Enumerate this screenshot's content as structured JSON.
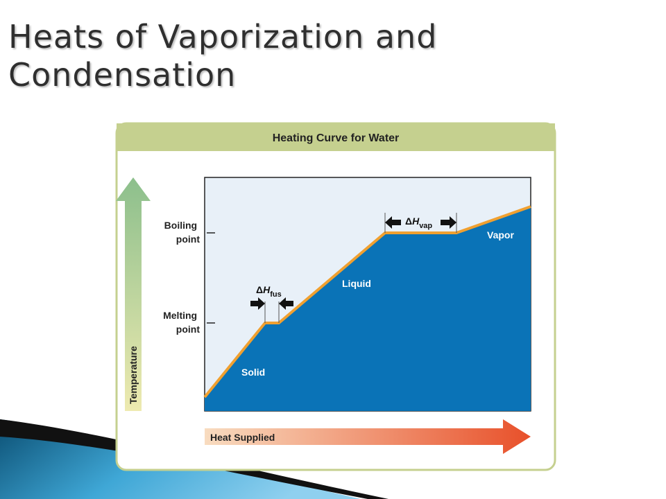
{
  "slide": {
    "title_line1": "Heats of Vaporization and",
    "title_line2": "Condensation"
  },
  "figure": {
    "title": "Heating Curve for Water",
    "y_axis_label": "Temperature",
    "x_axis_label": "Heat Supplied",
    "boiling_label_line1": "Boiling",
    "boiling_label_line2": "point",
    "melting_label_line1": "Melting",
    "melting_label_line2": "point",
    "phase_solid": "Solid",
    "phase_liquid": "Liquid",
    "phase_vapor": "Vapor",
    "delta_symbol": "Δ",
    "h_symbol": "H",
    "fus_subscript": "fus",
    "vap_subscript": "vap"
  },
  "colors": {
    "header_band": "#c5d08f",
    "panel_bg": "#e8f0f8",
    "water_fill": "#0a73b7",
    "curve_line": "#f0a030",
    "heat_arrow_start": "#f8dcc0",
    "heat_arrow_end": "#e8502a",
    "temp_arrow_top": "#8cbf8c",
    "temp_arrow_bottom": "#eeeab0"
  }
}
